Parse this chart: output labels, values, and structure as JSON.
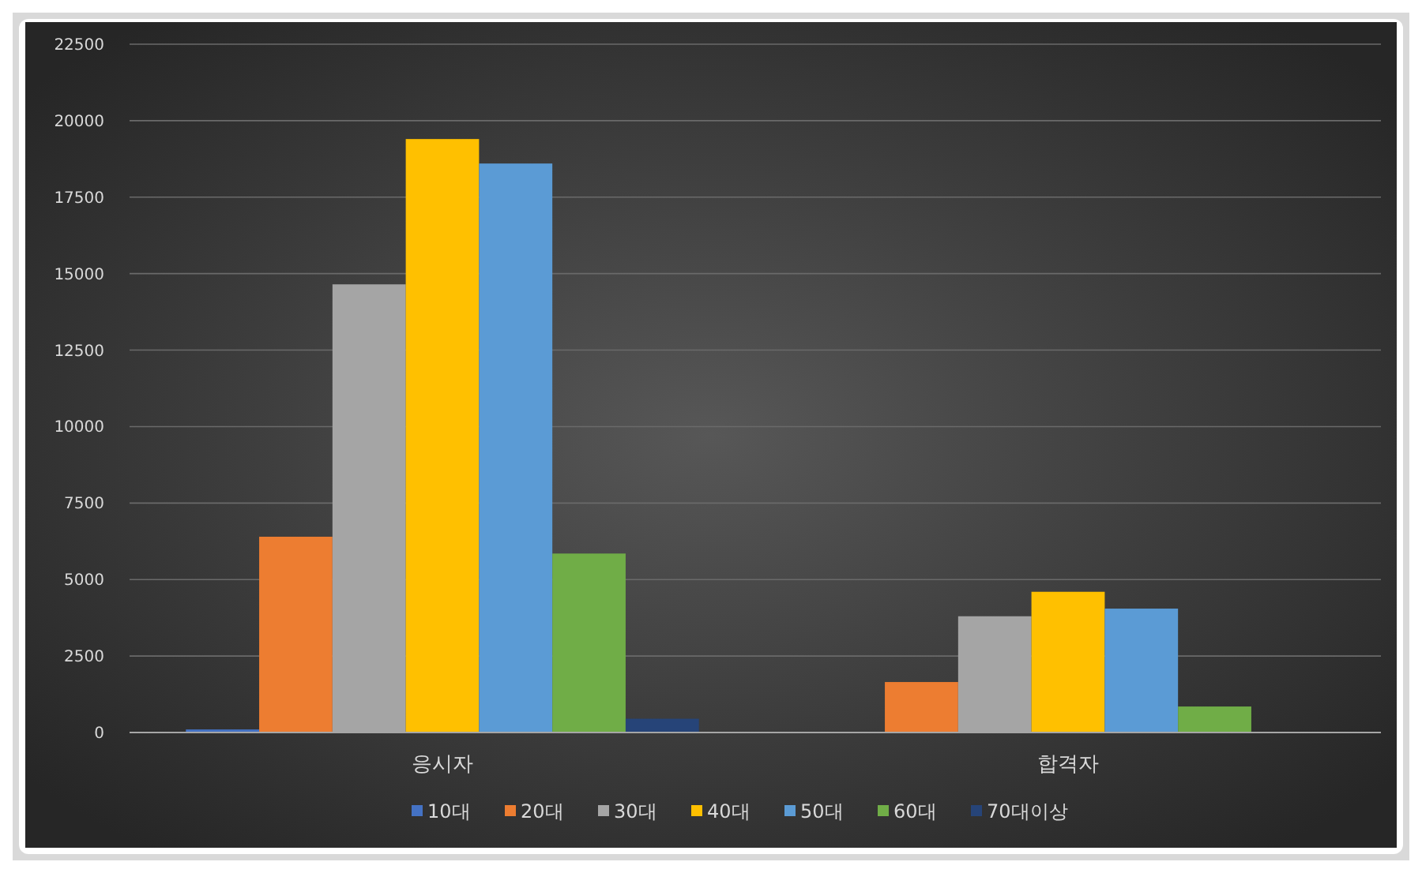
{
  "chart_data": {
    "type": "bar",
    "categories": [
      "응시자",
      "합격자"
    ],
    "series": [
      {
        "name": "10대",
        "color": "#4472c4",
        "values": [
          100,
          20
        ]
      },
      {
        "name": "20대",
        "color": "#ed7d31",
        "values": [
          6400,
          1650
        ]
      },
      {
        "name": "30대",
        "color": "#a5a5a5",
        "values": [
          14650,
          3800
        ]
      },
      {
        "name": "40대",
        "color": "#ffc000",
        "values": [
          19400,
          4600
        ]
      },
      {
        "name": "50대",
        "color": "#5b9bd5",
        "values": [
          18600,
          4050
        ]
      },
      {
        "name": "60대",
        "color": "#70ad47",
        "values": [
          5850,
          850
        ]
      },
      {
        "name": "70대이상",
        "color": "#264478",
        "values": [
          450,
          null
        ]
      }
    ],
    "ylim": [
      0,
      22500
    ],
    "yticks": [
      0,
      2500,
      5000,
      7500,
      10000,
      12500,
      15000,
      17500,
      20000,
      22500
    ],
    "grid": "y",
    "legend": "bottom"
  }
}
